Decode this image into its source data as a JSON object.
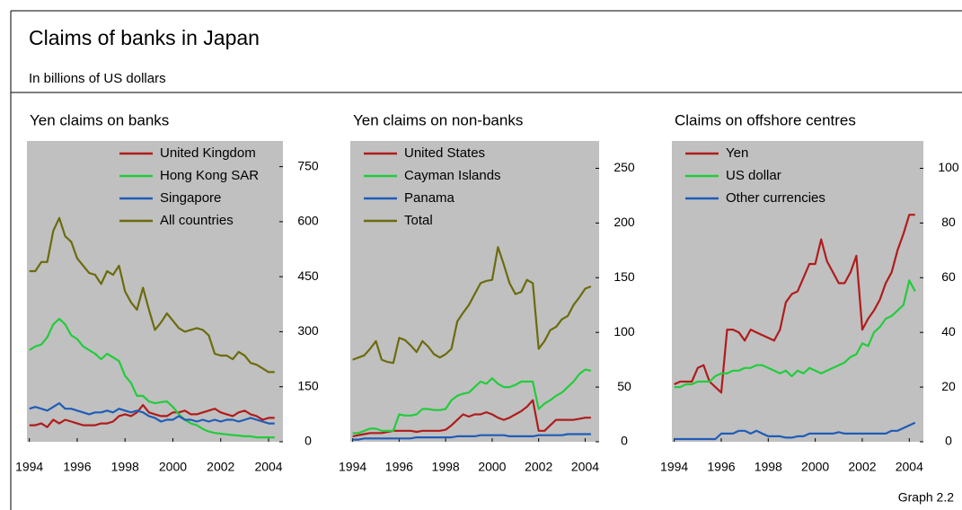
{
  "title": "Claims of banks in Japan",
  "subtitle": "In billions of US dollars",
  "note": "Graph 2.2",
  "chart_data": [
    {
      "type": "line",
      "title": "Yen claims on banks",
      "legend": "upper left",
      "x": [
        1994,
        1994.25,
        1994.5,
        1994.75,
        1995,
        1995.25,
        1995.5,
        1995.75,
        1996,
        1996.25,
        1996.5,
        1996.75,
        1997,
        1997.25,
        1997.5,
        1997.75,
        1998,
        1998.25,
        1998.5,
        1998.75,
        1999,
        1999.25,
        1999.5,
        1999.75,
        2000,
        2000.25,
        2000.5,
        2000.75,
        2001,
        2001.25,
        2001.5,
        2001.75,
        2002,
        2002.25,
        2002.5,
        2002.75,
        2003,
        2003.25,
        2003.5,
        2003.75,
        2004,
        2004.25
      ],
      "xlim": [
        1993.9,
        2004.6
      ],
      "xticks": [
        1994,
        1996,
        1998,
        2000,
        2002,
        2004
      ],
      "ylim": [
        0,
        820
      ],
      "yticks": [
        0,
        150,
        300,
        450,
        600,
        750
      ],
      "series": [
        {
          "name": "United Kingdom",
          "color": "#b01c1c",
          "values": [
            45,
            45,
            50,
            40,
            60,
            50,
            60,
            55,
            50,
            45,
            45,
            45,
            50,
            50,
            55,
            70,
            75,
            70,
            80,
            100,
            80,
            75,
            70,
            70,
            80,
            80,
            85,
            75,
            75,
            80,
            85,
            90,
            80,
            75,
            70,
            80,
            85,
            75,
            70,
            60,
            65,
            65
          ]
        },
        {
          "name": "Hong Kong SAR",
          "color": "#22cc3c",
          "values": [
            250,
            260,
            265,
            285,
            320,
            335,
            320,
            290,
            280,
            260,
            250,
            240,
            225,
            240,
            230,
            220,
            180,
            160,
            125,
            125,
            110,
            105,
            108,
            110,
            95,
            75,
            60,
            50,
            45,
            35,
            28,
            24,
            22,
            20,
            18,
            17,
            15,
            15,
            12,
            12,
            12,
            12
          ]
        },
        {
          "name": "Singapore",
          "color": "#1f5cb8",
          "values": [
            90,
            95,
            90,
            85,
            95,
            105,
            90,
            90,
            85,
            80,
            75,
            80,
            80,
            85,
            80,
            90,
            85,
            80,
            85,
            80,
            70,
            65,
            55,
            60,
            60,
            70,
            60,
            60,
            55,
            60,
            55,
            60,
            55,
            60,
            60,
            55,
            60,
            65,
            60,
            55,
            50,
            50
          ]
        },
        {
          "name": "All countries",
          "color": "#6b6b0e",
          "values": [
            465,
            465,
            490,
            490,
            575,
            610,
            560,
            545,
            500,
            480,
            460,
            455,
            430,
            465,
            455,
            480,
            410,
            380,
            360,
            420,
            360,
            305,
            325,
            350,
            330,
            310,
            300,
            305,
            310,
            305,
            290,
            240,
            235,
            235,
            225,
            245,
            235,
            215,
            210,
            200,
            190,
            190
          ]
        }
      ]
    },
    {
      "type": "line",
      "title": "Yen claims on non-banks",
      "legend": "upper left",
      "x": [
        1994,
        1994.25,
        1994.5,
        1994.75,
        1995,
        1995.25,
        1995.5,
        1995.75,
        1996,
        1996.25,
        1996.5,
        1996.75,
        1997,
        1997.25,
        1997.5,
        1997.75,
        1998,
        1998.25,
        1998.5,
        1998.75,
        1999,
        1999.25,
        1999.5,
        1999.75,
        2000,
        2000.25,
        2000.5,
        2000.75,
        2001,
        2001.25,
        2001.5,
        2001.75,
        2002,
        2002.25,
        2002.5,
        2002.75,
        2003,
        2003.25,
        2003.5,
        2003.75,
        2004,
        2004.25
      ],
      "xlim": [
        1993.9,
        2004.6
      ],
      "xticks": [
        1994,
        1996,
        1998,
        2000,
        2002,
        2004
      ],
      "ylim": [
        0,
        275
      ],
      "yticks": [
        0,
        50,
        100,
        150,
        200,
        250
      ],
      "series": [
        {
          "name": "United States",
          "color": "#b01c1c",
          "values": [
            5,
            6,
            7,
            8,
            8,
            8,
            9,
            10,
            10,
            10,
            10,
            9,
            10,
            10,
            10,
            10,
            11,
            15,
            20,
            25,
            23,
            25,
            25,
            27,
            25,
            22,
            20,
            22,
            25,
            28,
            32,
            38,
            10,
            10,
            15,
            20,
            20,
            20,
            20,
            21,
            22,
            22
          ]
        },
        {
          "name": "Cayman Islands",
          "color": "#22cc3c",
          "values": [
            8,
            8,
            10,
            12,
            12,
            10,
            10,
            10,
            25,
            24,
            24,
            25,
            30,
            30,
            29,
            29,
            30,
            38,
            42,
            44,
            45,
            50,
            55,
            53,
            58,
            53,
            50,
            50,
            52,
            55,
            55,
            55,
            30,
            35,
            38,
            42,
            45,
            50,
            55,
            62,
            66,
            65
          ]
        },
        {
          "name": "Panama",
          "color": "#1f5cb8",
          "values": [
            2,
            2,
            3,
            3,
            3,
            3,
            3,
            3,
            3,
            3,
            3,
            4,
            4,
            4,
            4,
            4,
            4,
            4,
            5,
            5,
            5,
            5,
            6,
            6,
            6,
            6,
            6,
            5,
            5,
            5,
            5,
            5,
            6,
            6,
            6,
            6,
            6,
            7,
            7,
            7,
            7,
            7
          ]
        },
        {
          "name": "Total",
          "color": "#6b6b0e",
          "values": [
            75,
            77,
            79,
            85,
            92,
            75,
            73,
            72,
            95,
            93,
            88,
            82,
            92,
            87,
            80,
            77,
            80,
            85,
            110,
            118,
            125,
            135,
            145,
            147,
            148,
            178,
            162,
            145,
            135,
            137,
            148,
            145,
            85,
            92,
            102,
            105,
            112,
            115,
            125,
            132,
            140,
            142
          ]
        }
      ]
    },
    {
      "type": "line",
      "title": "Claims on offshore centres",
      "legend": "upper left",
      "x": [
        1994,
        1994.25,
        1994.5,
        1994.75,
        1995,
        1995.25,
        1995.5,
        1995.75,
        1996,
        1996.25,
        1996.5,
        1996.75,
        1997,
        1997.25,
        1997.5,
        1997.75,
        1998,
        1998.25,
        1998.5,
        1998.75,
        1999,
        1999.25,
        1999.5,
        1999.75,
        2000,
        2000.25,
        2000.5,
        2000.75,
        2001,
        2001.25,
        2001.5,
        2001.75,
        2002,
        2002.25,
        2002.5,
        2002.75,
        2003,
        2003.25,
        2003.5,
        2003.75,
        2004,
        2004.25
      ],
      "xlim": [
        1993.9,
        2004.6
      ],
      "xticks": [
        1994,
        1996,
        1998,
        2000,
        2002,
        2004
      ],
      "ylim": [
        0,
        110
      ],
      "yticks": [
        0,
        20,
        40,
        60,
        80,
        100
      ],
      "series": [
        {
          "name": "Yen",
          "color": "#b01c1c",
          "values": [
            21,
            22,
            22,
            22,
            27,
            28,
            22,
            20,
            18,
            41,
            41,
            40,
            37,
            41,
            40,
            39,
            38,
            37,
            41,
            51,
            54,
            55,
            60,
            65,
            65,
            74,
            66,
            62,
            58,
            58,
            62,
            68,
            41,
            45,
            48,
            52,
            58,
            62,
            70,
            76,
            83,
            83
          ]
        },
        {
          "name": "US dollar",
          "color": "#22cc3c",
          "values": [
            20,
            20,
            21,
            21,
            22,
            22,
            22,
            24,
            25,
            25,
            26,
            26,
            27,
            27,
            28,
            28,
            27,
            26,
            25,
            26,
            24,
            26,
            25,
            27,
            26,
            25,
            26,
            27,
            28,
            29,
            31,
            32,
            36,
            35,
            40,
            42,
            45,
            46,
            48,
            50,
            59,
            55
          ]
        },
        {
          "name": "Other currencies",
          "color": "#1f5cb8",
          "values": [
            1,
            1,
            1,
            1,
            1,
            1,
            1,
            1,
            3,
            3,
            3,
            4,
            4,
            3,
            4,
            3,
            2,
            2,
            2,
            1.5,
            1.5,
            2,
            2,
            3,
            3,
            3,
            3,
            3,
            3.5,
            3,
            3,
            3,
            3,
            3,
            3,
            3,
            3,
            4,
            4,
            5,
            6,
            7
          ]
        }
      ]
    }
  ]
}
